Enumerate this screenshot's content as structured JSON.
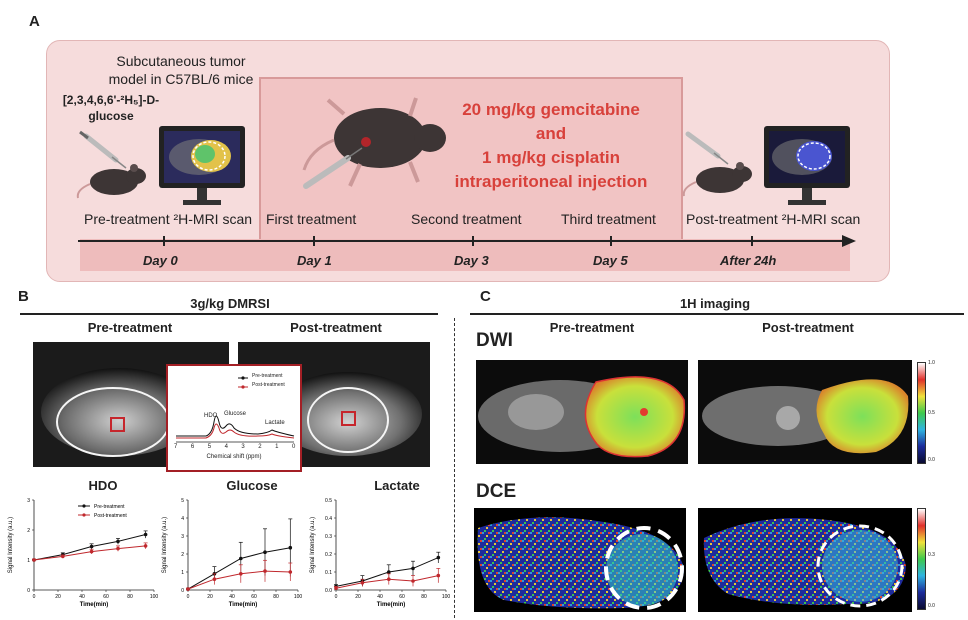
{
  "panel_a": {
    "letter": "A",
    "model_text_1": "Subcutaneous tumor",
    "model_text_2": "model in C57BL/6 mice",
    "glucose_label_1": "[2,3,4,6,6'-²H₅]-D-",
    "glucose_label_2": "glucose",
    "drug_line_1": "20 mg/kg gemcitabine",
    "drug_line_2": "and",
    "drug_line_3": "1 mg/kg cisplatin",
    "drug_line_4": "intraperitoneal injection",
    "steps": [
      {
        "label": "Pre-treatment ²H-MRI scan",
        "day": "Day 0"
      },
      {
        "label": "First treatment",
        "day": "Day 1"
      },
      {
        "label": "Second treatment",
        "day": "Day 3"
      },
      {
        "label": "Third treatment",
        "day": "Day 5"
      },
      {
        "label": "Post-treatment ²H-MRI scan",
        "day": "After 24h"
      }
    ]
  },
  "panel_b": {
    "letter": "B",
    "title": "3g/kg  DMRSI",
    "pre": "Pre-treatment",
    "post": "Post-treatment",
    "spectrum": {
      "legend_pre": "Pre-treatment",
      "legend_post": "Post-treatment",
      "peak_hdo": "HDO",
      "peak_glucose": "Glucose",
      "peak_lactate": "Lactate",
      "xlabel": "Chemical shift (ppm)",
      "ticks": [
        "7",
        "6",
        "5",
        "4",
        "3",
        "2",
        "1",
        "0"
      ]
    }
  },
  "panel_c": {
    "letter": "C",
    "title": "1H imaging",
    "pre": "Pre-treatment",
    "post": "Post-treatment",
    "dwi": "DWI",
    "dce": "DCE",
    "dwi_scale": [
      "1.0",
      "0.5",
      "0.0"
    ],
    "dce_scale": [
      "0.3",
      "0.0"
    ]
  },
  "colors": {
    "accent_red": "#d8413b",
    "pre_series": "#111111",
    "post_series": "#c0282d"
  },
  "chart_data": [
    {
      "type": "line",
      "title": "HDO",
      "xlabel": "Time(min)",
      "ylabel": "Signal Intensity (a.u.)",
      "xlim": [
        0,
        100
      ],
      "ylim": [
        0,
        3
      ],
      "xticks": [
        0,
        20,
        40,
        60,
        80,
        100
      ],
      "yticks": [
        0,
        1,
        2,
        3
      ],
      "legend": [
        "Pre-treatment",
        "Post-treatment"
      ],
      "series": [
        {
          "name": "Pre-treatment",
          "x": [
            0,
            24,
            48,
            70,
            93
          ],
          "values": [
            1.0,
            1.18,
            1.45,
            1.62,
            1.85
          ],
          "err": [
            0.03,
            0.06,
            0.09,
            0.1,
            0.12
          ]
        },
        {
          "name": "Post-treatment",
          "x": [
            0,
            24,
            48,
            70,
            93
          ],
          "values": [
            1.0,
            1.12,
            1.28,
            1.38,
            1.47
          ],
          "err": [
            0.03,
            0.05,
            0.08,
            0.09,
            0.1
          ]
        }
      ]
    },
    {
      "type": "line",
      "title": "Glucose",
      "xlabel": "Time(min)",
      "ylabel": "Signal Intensity (a.u.)",
      "xlim": [
        0,
        100
      ],
      "ylim": [
        0,
        5
      ],
      "xticks": [
        0,
        20,
        40,
        60,
        80,
        100
      ],
      "yticks": [
        0,
        1,
        2,
        3,
        4,
        5
      ],
      "series": [
        {
          "name": "Pre-treatment",
          "x": [
            0,
            24,
            48,
            70,
            93
          ],
          "values": [
            0.05,
            0.9,
            1.75,
            2.1,
            2.35
          ],
          "err": [
            0.05,
            0.4,
            0.9,
            1.3,
            1.6
          ]
        },
        {
          "name": "Post-treatment",
          "x": [
            0,
            24,
            48,
            70,
            93
          ],
          "values": [
            0.05,
            0.6,
            0.9,
            1.05,
            1.0
          ],
          "err": [
            0.05,
            0.3,
            0.5,
            0.6,
            0.5
          ]
        }
      ]
    },
    {
      "type": "line",
      "title": "Lactate",
      "xlabel": "Time(min)",
      "ylabel": "Signal Intensity (a.u.)",
      "xlim": [
        0,
        100
      ],
      "ylim": [
        0,
        0.5
      ],
      "xticks": [
        0,
        20,
        40,
        60,
        80,
        100
      ],
      "yticks": [
        0.0,
        0.1,
        0.2,
        0.3,
        0.4,
        0.5
      ],
      "series": [
        {
          "name": "Pre-treatment",
          "x": [
            0,
            24,
            48,
            70,
            93
          ],
          "values": [
            0.02,
            0.05,
            0.1,
            0.12,
            0.18
          ],
          "err": [
            0.01,
            0.03,
            0.04,
            0.04,
            0.03
          ]
        },
        {
          "name": "Post-treatment",
          "x": [
            0,
            24,
            48,
            70,
            93
          ],
          "values": [
            0.01,
            0.04,
            0.06,
            0.05,
            0.08
          ],
          "err": [
            0.01,
            0.02,
            0.03,
            0.03,
            0.04
          ]
        }
      ]
    }
  ]
}
